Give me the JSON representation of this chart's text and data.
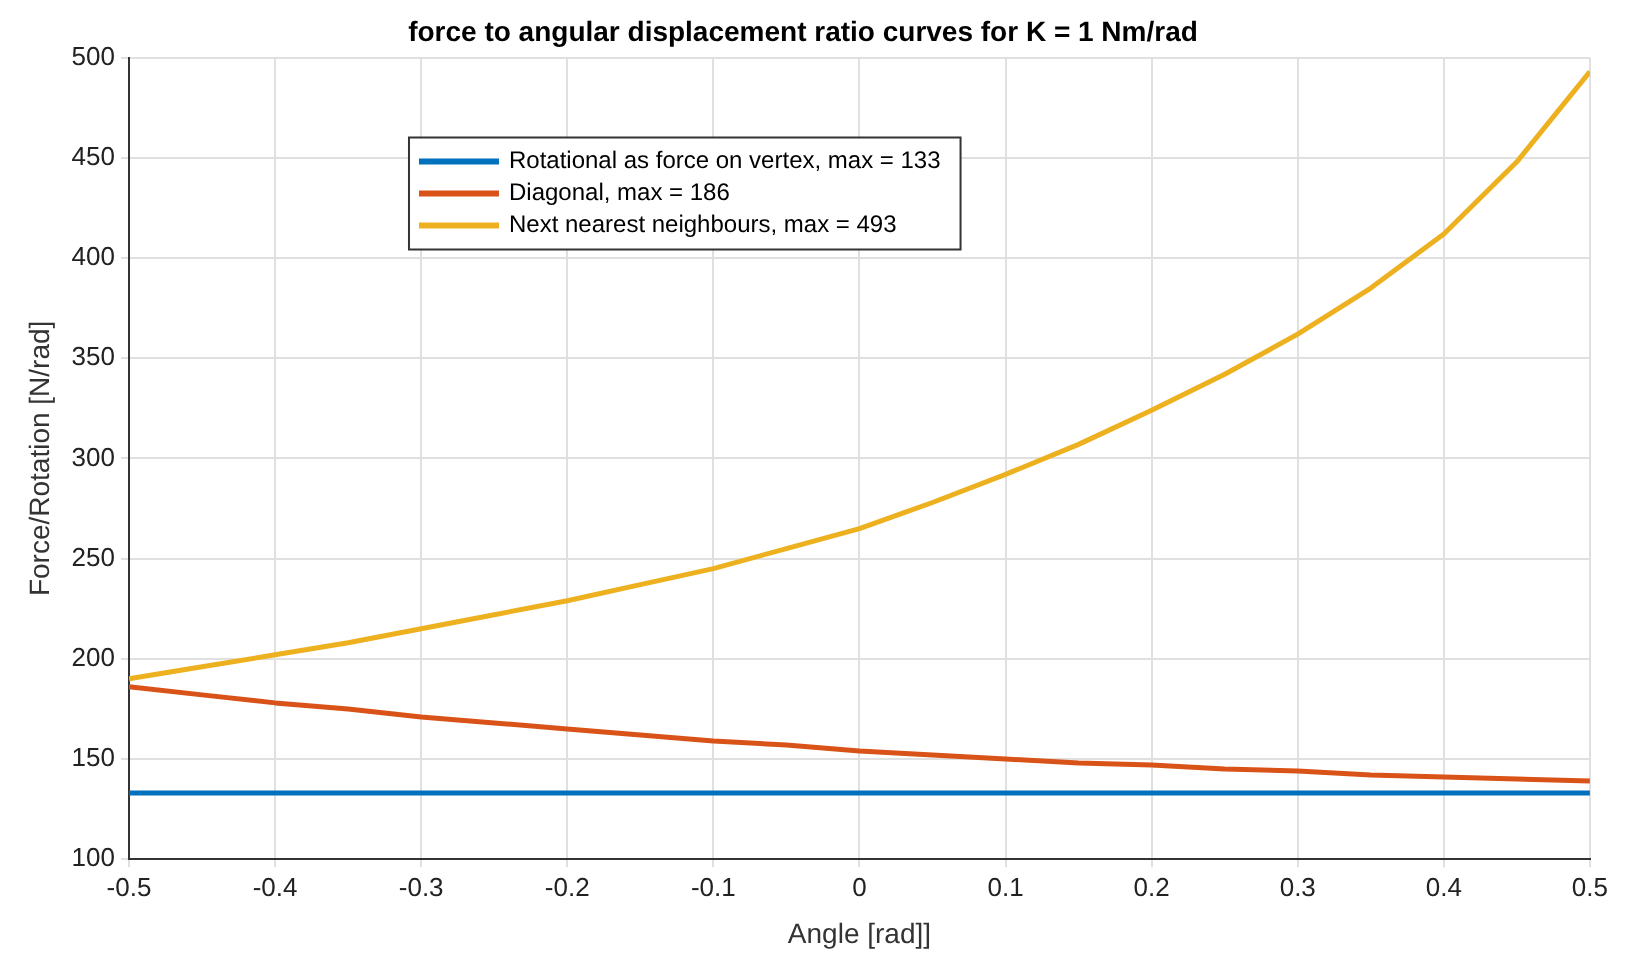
{
  "chart_data": {
    "type": "line",
    "title": "force to angular displacement ratio curves for K = 1 Nm/rad",
    "xlabel": "Angle [rad]]",
    "ylabel": "Force/Rotation [N/rad]",
    "x": [
      -0.5,
      -0.45,
      -0.4,
      -0.35,
      -0.3,
      -0.25,
      -0.2,
      -0.15,
      -0.1,
      -0.05,
      0,
      0.05,
      0.1,
      0.15,
      0.2,
      0.25,
      0.3,
      0.35,
      0.4,
      0.45,
      0.5
    ],
    "series": [
      {
        "name": "Rotational as force on vertex, max = 133",
        "color": "#0072bd",
        "values": [
          133,
          133,
          133,
          133,
          133,
          133,
          133,
          133,
          133,
          133,
          133,
          133,
          133,
          133,
          133,
          133,
          133,
          133,
          133,
          133,
          133
        ]
      },
      {
        "name": "Diagonal, max = 186",
        "color": "#d95319",
        "values": [
          186,
          182,
          178,
          175,
          171,
          168,
          165,
          162,
          159,
          157,
          154,
          152,
          150,
          148,
          147,
          145,
          144,
          142,
          141,
          140,
          139
        ]
      },
      {
        "name": "Next nearest neighbours, max = 493",
        "color": "#edb120",
        "values": [
          190,
          196,
          202,
          208,
          215,
          222,
          229,
          237,
          245,
          255,
          265,
          278,
          292,
          307,
          324,
          342,
          362,
          385,
          412,
          448,
          493
        ]
      }
    ],
    "xlim": [
      -0.5,
      0.5
    ],
    "xticks": [
      -0.5,
      -0.4,
      -0.3,
      -0.2,
      -0.1,
      0,
      0.1,
      0.2,
      0.3,
      0.4,
      0.5
    ],
    "ylim": [
      100,
      500
    ],
    "yticks": [
      100,
      150,
      200,
      250,
      300,
      350,
      400,
      450,
      500
    ],
    "grid": true,
    "legend": "top left",
    "marker": "none",
    "line_style": "solid"
  }
}
